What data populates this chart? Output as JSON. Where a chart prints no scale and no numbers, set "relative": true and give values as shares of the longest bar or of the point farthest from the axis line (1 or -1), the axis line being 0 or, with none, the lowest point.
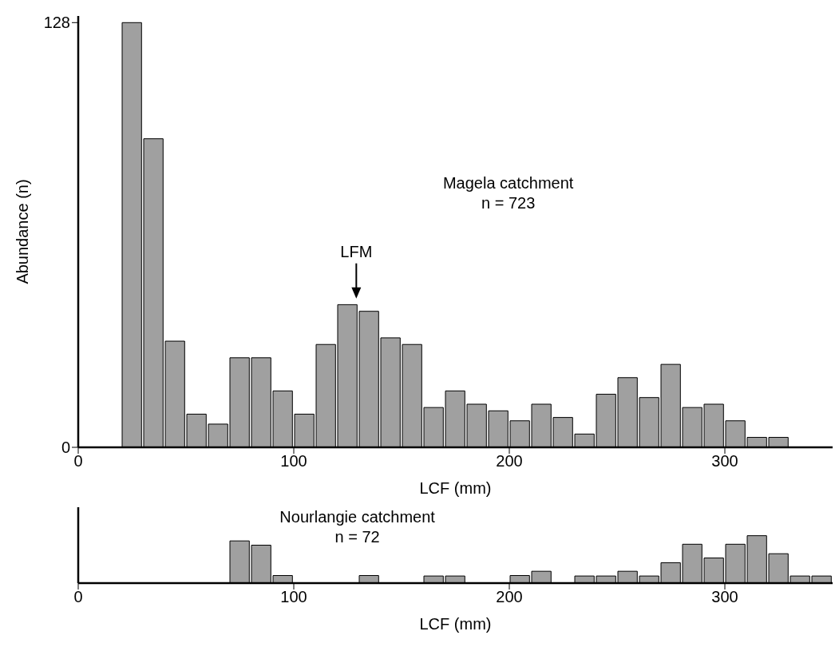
{
  "chart_data": [
    {
      "type": "histogram",
      "xlabel": "LCF (mm)",
      "ylabel": "Abundance (n)",
      "color": "#a0a0a0",
      "bins": [
        20,
        30,
        40,
        50,
        60,
        70,
        80,
        90,
        100,
        110,
        120,
        130,
        140,
        150,
        160,
        170,
        180,
        190,
        200,
        210,
        220,
        230,
        240,
        250,
        260,
        270,
        280,
        290,
        300,
        310,
        320,
        330
      ],
      "values": [
        128,
        93,
        32,
        10,
        7,
        27,
        27,
        17,
        10,
        31,
        43,
        41,
        33,
        31,
        12,
        17,
        13,
        11,
        8,
        13,
        9,
        4,
        16,
        21,
        15,
        25,
        12,
        13,
        8,
        3,
        3
      ],
      "xlim": [
        0,
        350
      ],
      "xticks": [
        0,
        100,
        200,
        300
      ],
      "ylim": [
        0,
        130
      ],
      "yticks": [
        0,
        128
      ],
      "annotations": [
        "Magela catchment",
        "n = 723",
        "LFM"
      ]
    },
    {
      "type": "bar",
      "xlabel": "LCF (mm)",
      "color": "#a0a0a0",
      "relative": true,
      "x": [
        75,
        85,
        95,
        105,
        115,
        125,
        135,
        145,
        155,
        165,
        175,
        185,
        195,
        205,
        215,
        225,
        235,
        245,
        255,
        265,
        275,
        285,
        295,
        305,
        315,
        325,
        335,
        345
      ],
      "values": [
        0.89,
        0.8,
        0.16,
        0,
        0,
        0,
        0.16,
        0,
        0,
        0.15,
        0.15,
        0,
        0,
        0.16,
        0.25,
        0,
        0.15,
        0.15,
        0.25,
        0.15,
        0.43,
        0.82,
        0.53,
        0.82,
        1,
        0.62,
        0.15,
        0.15
      ],
      "xlim": [
        0,
        350
      ],
      "xticks": [
        0,
        100,
        200,
        300
      ],
      "annotations": [
        "Nourlangie catchment",
        "n = 72"
      ]
    }
  ]
}
